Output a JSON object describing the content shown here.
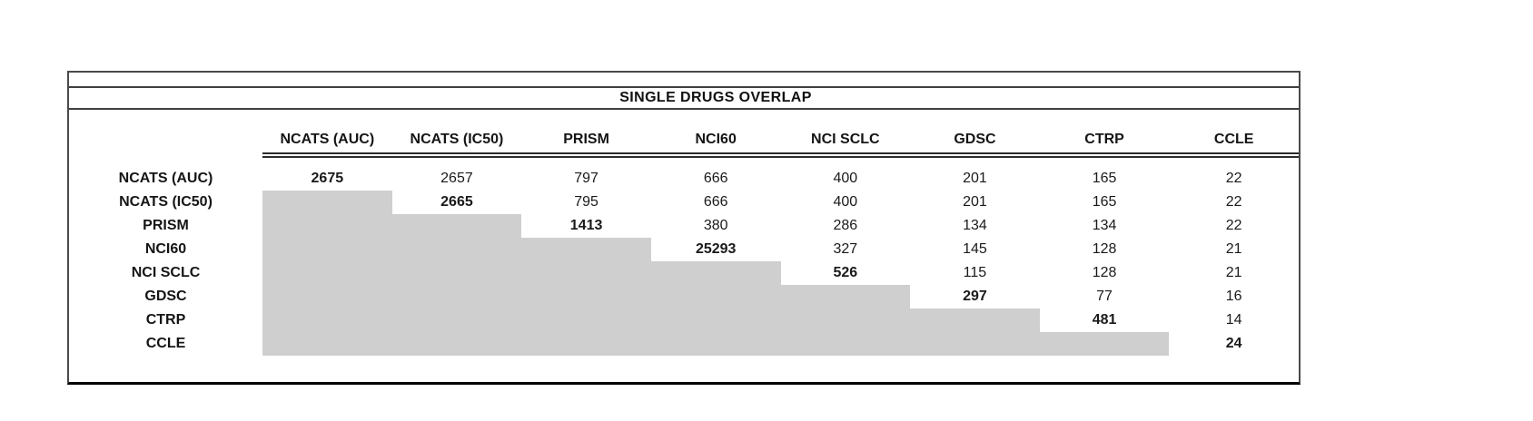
{
  "title": "SINGLE DRUGS OVERLAP",
  "colors": {
    "shaded_cell": "#d0cfd0",
    "panel_border": "#4a4a4a",
    "panel_bottom_border": "#000000",
    "header_rule": "#2b2b2b",
    "text": "#1a1a1a",
    "background": "#ffffff"
  },
  "chart_data": {
    "type": "table",
    "title": "SINGLE DRUGS OVERLAP",
    "description_layout": {
      "lower_triangle_shaded": true,
      "diagonal_bold": true,
      "header_double_underline": true
    },
    "columns": [
      "NCATS (AUC)",
      "NCATS (IC50)",
      "PRISM",
      "NCI60",
      "NCI SCLC",
      "GDSC",
      "CTRP",
      "CCLE"
    ],
    "rows": [
      {
        "label": "NCATS (AUC)",
        "values": [
          2675,
          2657,
          797,
          666,
          400,
          201,
          165,
          22
        ]
      },
      {
        "label": "NCATS (IC50)",
        "values": [
          null,
          2665,
          795,
          666,
          400,
          201,
          165,
          22
        ]
      },
      {
        "label": "PRISM",
        "values": [
          null,
          null,
          1413,
          380,
          286,
          134,
          134,
          22
        ]
      },
      {
        "label": "NCI60",
        "values": [
          null,
          null,
          null,
          25293,
          327,
          145,
          128,
          21
        ]
      },
      {
        "label": "NCI SCLC",
        "values": [
          null,
          null,
          null,
          null,
          526,
          115,
          128,
          21
        ]
      },
      {
        "label": "GDSC",
        "values": [
          null,
          null,
          null,
          null,
          null,
          297,
          77,
          16
        ]
      },
      {
        "label": "CTRP",
        "values": [
          null,
          null,
          null,
          null,
          null,
          null,
          481,
          14
        ]
      },
      {
        "label": "CCLE",
        "values": [
          null,
          null,
          null,
          null,
          null,
          null,
          null,
          24
        ]
      }
    ]
  }
}
